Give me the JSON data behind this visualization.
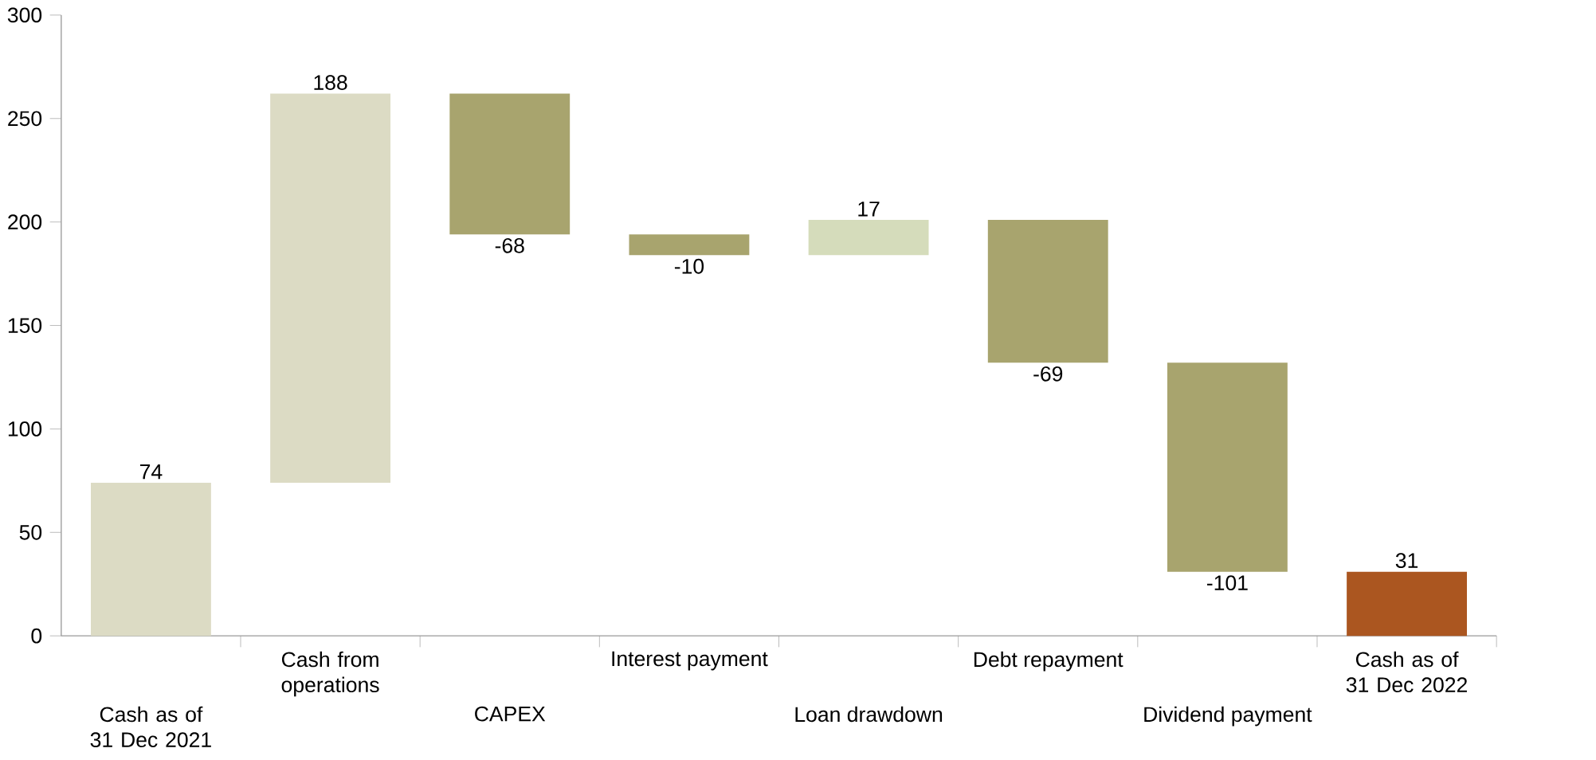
{
  "chart_data": {
    "type": "bar",
    "categories": [
      "Cash as of 31 Dec 2021",
      "Cash from operations",
      "CAPEX",
      "Interest payment",
      "Loan drawdown",
      "Debt repayment",
      "Dividend payment",
      "Cash as of 31 Dec 2022"
    ],
    "values": [
      74,
      188,
      -68,
      -10,
      17,
      -69,
      -101,
      31
    ],
    "base": [
      0,
      74,
      262,
      194,
      184,
      201,
      132,
      0
    ],
    "colors": [
      "#dcdbc4",
      "#dcdbc4",
      "#a8a46e",
      "#a8a46e",
      "#d5dcbb",
      "#a8a46e",
      "#a8a46e",
      "#ab5620"
    ],
    "ylim": [
      0,
      300
    ],
    "yticks": [
      0,
      50,
      100,
      150,
      200,
      250,
      300
    ],
    "data_labels": true
  }
}
